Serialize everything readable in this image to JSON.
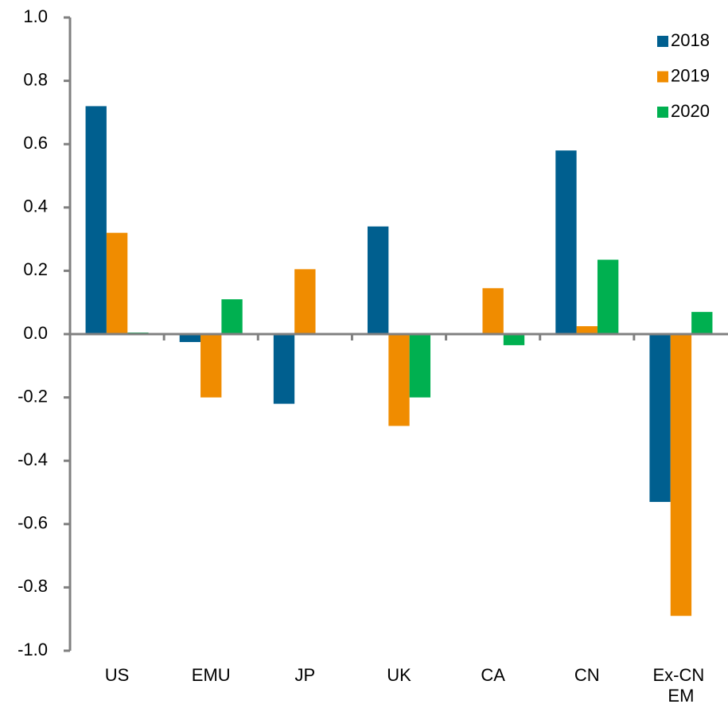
{
  "chart_data": {
    "type": "bar",
    "categories": [
      "US",
      "EMU",
      "JP",
      "UK",
      "CA",
      "CN",
      "Ex-CN EM"
    ],
    "series": [
      {
        "name": "2018",
        "color": "#005f8f",
        "values": [
          0.72,
          -0.025,
          -0.22,
          0.34,
          0,
          0.58,
          -0.53
        ]
      },
      {
        "name": "2019",
        "color": "#f08c00",
        "values": [
          0.32,
          -0.2,
          0.205,
          -0.29,
          0.145,
          0.025,
          -0.89
        ]
      },
      {
        "name": "2020",
        "color": "#00b050",
        "values": [
          0.005,
          0.11,
          0,
          -0.2,
          -0.035,
          0.235,
          0.07
        ]
      }
    ],
    "ylim": [
      -1,
      1
    ],
    "yticks": [
      {
        "value": -1,
        "label": "-1.0"
      },
      -0.8,
      -0.6,
      -0.4,
      -0.2,
      {
        "value": 0,
        "label": "0.0"
      },
      0.2,
      0.4,
      0.6,
      0.8,
      {
        "value": 1,
        "label": "1.0"
      }
    ],
    "legend": "top-right",
    "grid": false
  }
}
